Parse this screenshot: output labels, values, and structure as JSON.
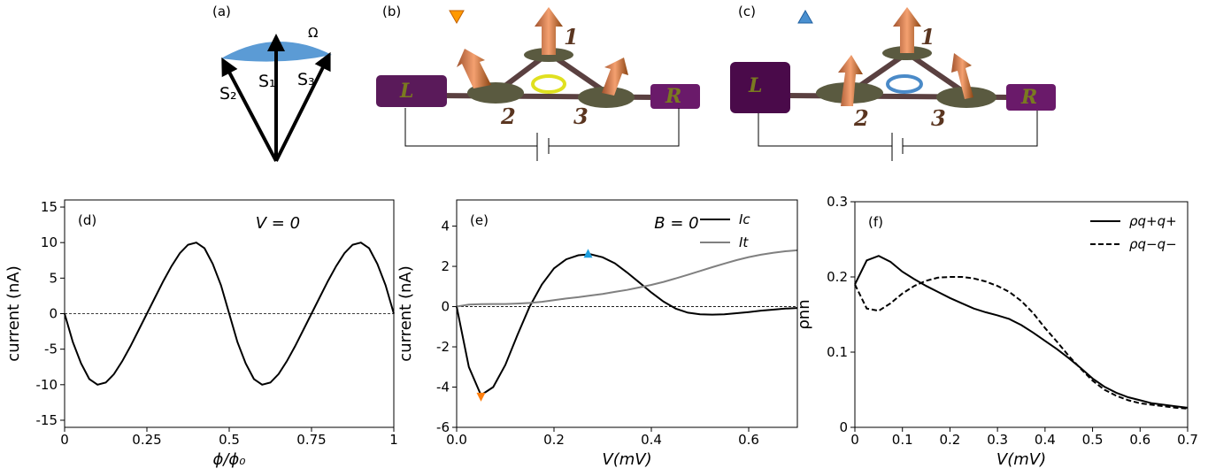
{
  "diagrams": [
    {
      "label": "(a)",
      "texts": [
        "Ω",
        "S₂",
        "S₁",
        "S₃"
      ]
    },
    {
      "label": "(b)",
      "sites": [
        "1",
        "2",
        "3"
      ],
      "leads": [
        "L",
        "R"
      ]
    },
    {
      "label": "(c)",
      "sites": [
        "1",
        "2",
        "3"
      ],
      "leads": [
        "L",
        "R"
      ]
    }
  ],
  "chart_data": [
    {
      "type": "line",
      "panel_label": "(d)",
      "annotation": "V = 0",
      "xlabel": "ϕ/ϕ₀",
      "ylabel": "current (nA)",
      "xlim": [
        0,
        1
      ],
      "ylim": [
        -16,
        16
      ],
      "xticks": [
        0,
        0.25,
        0.5,
        0.75,
        1
      ],
      "yticks": [
        -15,
        -10,
        -5,
        0,
        5,
        10,
        15
      ],
      "hline": 0,
      "x": [
        0,
        0.025,
        0.05,
        0.075,
        0.1,
        0.125,
        0.15,
        0.175,
        0.2,
        0.225,
        0.25,
        0.275,
        0.3,
        0.325,
        0.35,
        0.375,
        0.4,
        0.425,
        0.45,
        0.475,
        0.5,
        0.525,
        0.55,
        0.575,
        0.6,
        0.625,
        0.65,
        0.675,
        0.7,
        0.725,
        0.75,
        0.775,
        0.8,
        0.825,
        0.85,
        0.875,
        0.9,
        0.925,
        0.95,
        0.975,
        1
      ],
      "series": [
        {
          "color": "#000000",
          "dash": false,
          "values": [
            0,
            -4,
            -7,
            -9.2,
            -10,
            -9.7,
            -8.5,
            -6.7,
            -4.6,
            -2.3,
            0,
            2.3,
            4.6,
            6.7,
            8.5,
            9.7,
            10,
            9.2,
            7,
            4,
            0,
            -4,
            -7,
            -9.2,
            -10,
            -9.7,
            -8.5,
            -6.7,
            -4.6,
            -2.3,
            0,
            2.3,
            4.6,
            6.7,
            8.5,
            9.7,
            10,
            9.2,
            7,
            4,
            0
          ]
        }
      ]
    },
    {
      "type": "line",
      "panel_label": "(e)",
      "annotation": "B = 0",
      "xlabel": "V(mV)",
      "ylabel": "current (nA)",
      "xlim": [
        0,
        0.7
      ],
      "ylim": [
        -6,
        5.3
      ],
      "xticks": [
        {
          "value": 0,
          "label": "0.0"
        },
        0.2,
        0.4,
        0.6
      ],
      "yticks": [
        -6,
        -4,
        -2,
        0,
        2,
        4
      ],
      "hline": 0,
      "legend": "upper right",
      "x": [
        0,
        0.025,
        0.05,
        0.075,
        0.1,
        0.125,
        0.15,
        0.175,
        0.2,
        0.225,
        0.25,
        0.275,
        0.3,
        0.325,
        0.35,
        0.375,
        0.4,
        0.425,
        0.45,
        0.475,
        0.5,
        0.525,
        0.55,
        0.575,
        0.6,
        0.625,
        0.65,
        0.675,
        0.7
      ],
      "series": [
        {
          "name": "Ic",
          "color": "#000000",
          "dash": false,
          "values": [
            0,
            -3,
            -4.4,
            -4,
            -2.9,
            -1.4,
            0,
            1.1,
            1.9,
            2.35,
            2.55,
            2.6,
            2.45,
            2.15,
            1.7,
            1.2,
            0.7,
            0.25,
            -0.1,
            -0.3,
            -0.38,
            -0.4,
            -0.38,
            -0.33,
            -0.27,
            -0.2,
            -0.15,
            -0.1,
            -0.07
          ]
        },
        {
          "name": "It",
          "color": "#808080",
          "dash": false,
          "values": [
            0,
            0.1,
            0.12,
            0.13,
            0.13,
            0.15,
            0.18,
            0.24,
            0.32,
            0.4,
            0.47,
            0.55,
            0.63,
            0.73,
            0.83,
            0.95,
            1.08,
            1.23,
            1.4,
            1.58,
            1.77,
            1.96,
            2.14,
            2.31,
            2.46,
            2.58,
            2.67,
            2.75,
            2.8
          ]
        }
      ],
      "markers": [
        {
          "x": 0.05,
          "y": -4.5,
          "color": "#ff7f0e",
          "shape": "down"
        },
        {
          "x": 0.27,
          "y": 2.65,
          "color": "#1f9fdf",
          "shape": "up"
        }
      ]
    },
    {
      "type": "line",
      "panel_label": "(f)",
      "xlabel": "V(mV)",
      "ylabel": "ρnn",
      "xlim": [
        0,
        0.7
      ],
      "ylim": [
        0,
        0.3
      ],
      "xticks": [
        0,
        0.1,
        0.2,
        0.3,
        0.4,
        0.5,
        0.6,
        0.7
      ],
      "yticks": [
        0,
        0.1,
        0.2,
        0.3
      ],
      "legend": "upper right",
      "x": [
        0,
        0.025,
        0.05,
        0.075,
        0.1,
        0.125,
        0.15,
        0.175,
        0.2,
        0.225,
        0.25,
        0.275,
        0.3,
        0.325,
        0.35,
        0.375,
        0.4,
        0.425,
        0.45,
        0.475,
        0.5,
        0.525,
        0.55,
        0.575,
        0.6,
        0.625,
        0.65,
        0.675,
        0.7
      ],
      "series": [
        {
          "name": "ρq+q+",
          "color": "#000000",
          "dash": false,
          "values": [
            0.19,
            0.222,
            0.228,
            0.22,
            0.207,
            0.197,
            0.188,
            0.18,
            0.172,
            0.165,
            0.158,
            0.153,
            0.149,
            0.144,
            0.136,
            0.126,
            0.115,
            0.104,
            0.092,
            0.079,
            0.065,
            0.054,
            0.046,
            0.04,
            0.036,
            0.032,
            0.03,
            0.028,
            0.026
          ]
        },
        {
          "name": "ρq−q−",
          "color": "#000000",
          "dash": true,
          "values": [
            0.19,
            0.158,
            0.155,
            0.165,
            0.178,
            0.188,
            0.195,
            0.199,
            0.2,
            0.2,
            0.198,
            0.194,
            0.188,
            0.18,
            0.168,
            0.152,
            0.132,
            0.114,
            0.095,
            0.078,
            0.062,
            0.05,
            0.042,
            0.036,
            0.032,
            0.03,
            0.028,
            0.026,
            0.025
          ]
        }
      ]
    }
  ]
}
